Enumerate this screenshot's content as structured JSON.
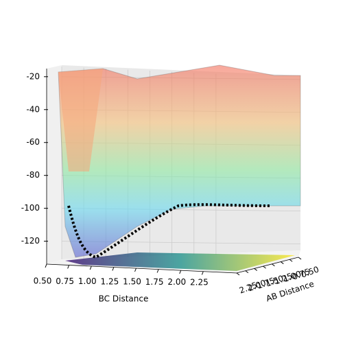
{
  "chart_data": {
    "type": "surface",
    "xlabel": "BC Distance",
    "ylabel": "AB Distance",
    "xlim": [
      0.5,
      2.5
    ],
    "ylim": [
      0.5,
      2.25
    ],
    "zlim": [
      -136,
      -18
    ],
    "xticks": [
      {
        "value": 0.5,
        "label": "0.50"
      },
      {
        "value": 0.75,
        "label": "0.75"
      },
      {
        "value": 1.0,
        "label": "1.00"
      },
      {
        "value": 1.25,
        "label": "1.25"
      },
      {
        "value": 1.5,
        "label": "1.50"
      },
      {
        "value": 1.75,
        "label": "1.75"
      },
      {
        "value": 2.0,
        "label": "2.00"
      },
      {
        "value": 2.25,
        "label": "2.25"
      }
    ],
    "yticks": [
      {
        "value": 0.5,
        "label": "0.50"
      },
      {
        "value": 0.75,
        "label": "0.75"
      },
      {
        "value": 1.0,
        "label": "1.00"
      },
      {
        "value": 1.25,
        "label": "1.25"
      },
      {
        "value": 1.5,
        "label": "1.50"
      },
      {
        "value": 1.75,
        "label": "1.75"
      },
      {
        "value": 2.0,
        "label": "2.00"
      },
      {
        "value": 2.25,
        "label": "2.25"
      }
    ],
    "zticks": [
      -20,
      -40,
      -60,
      -80,
      -100,
      -120
    ],
    "grid": true
  }
}
